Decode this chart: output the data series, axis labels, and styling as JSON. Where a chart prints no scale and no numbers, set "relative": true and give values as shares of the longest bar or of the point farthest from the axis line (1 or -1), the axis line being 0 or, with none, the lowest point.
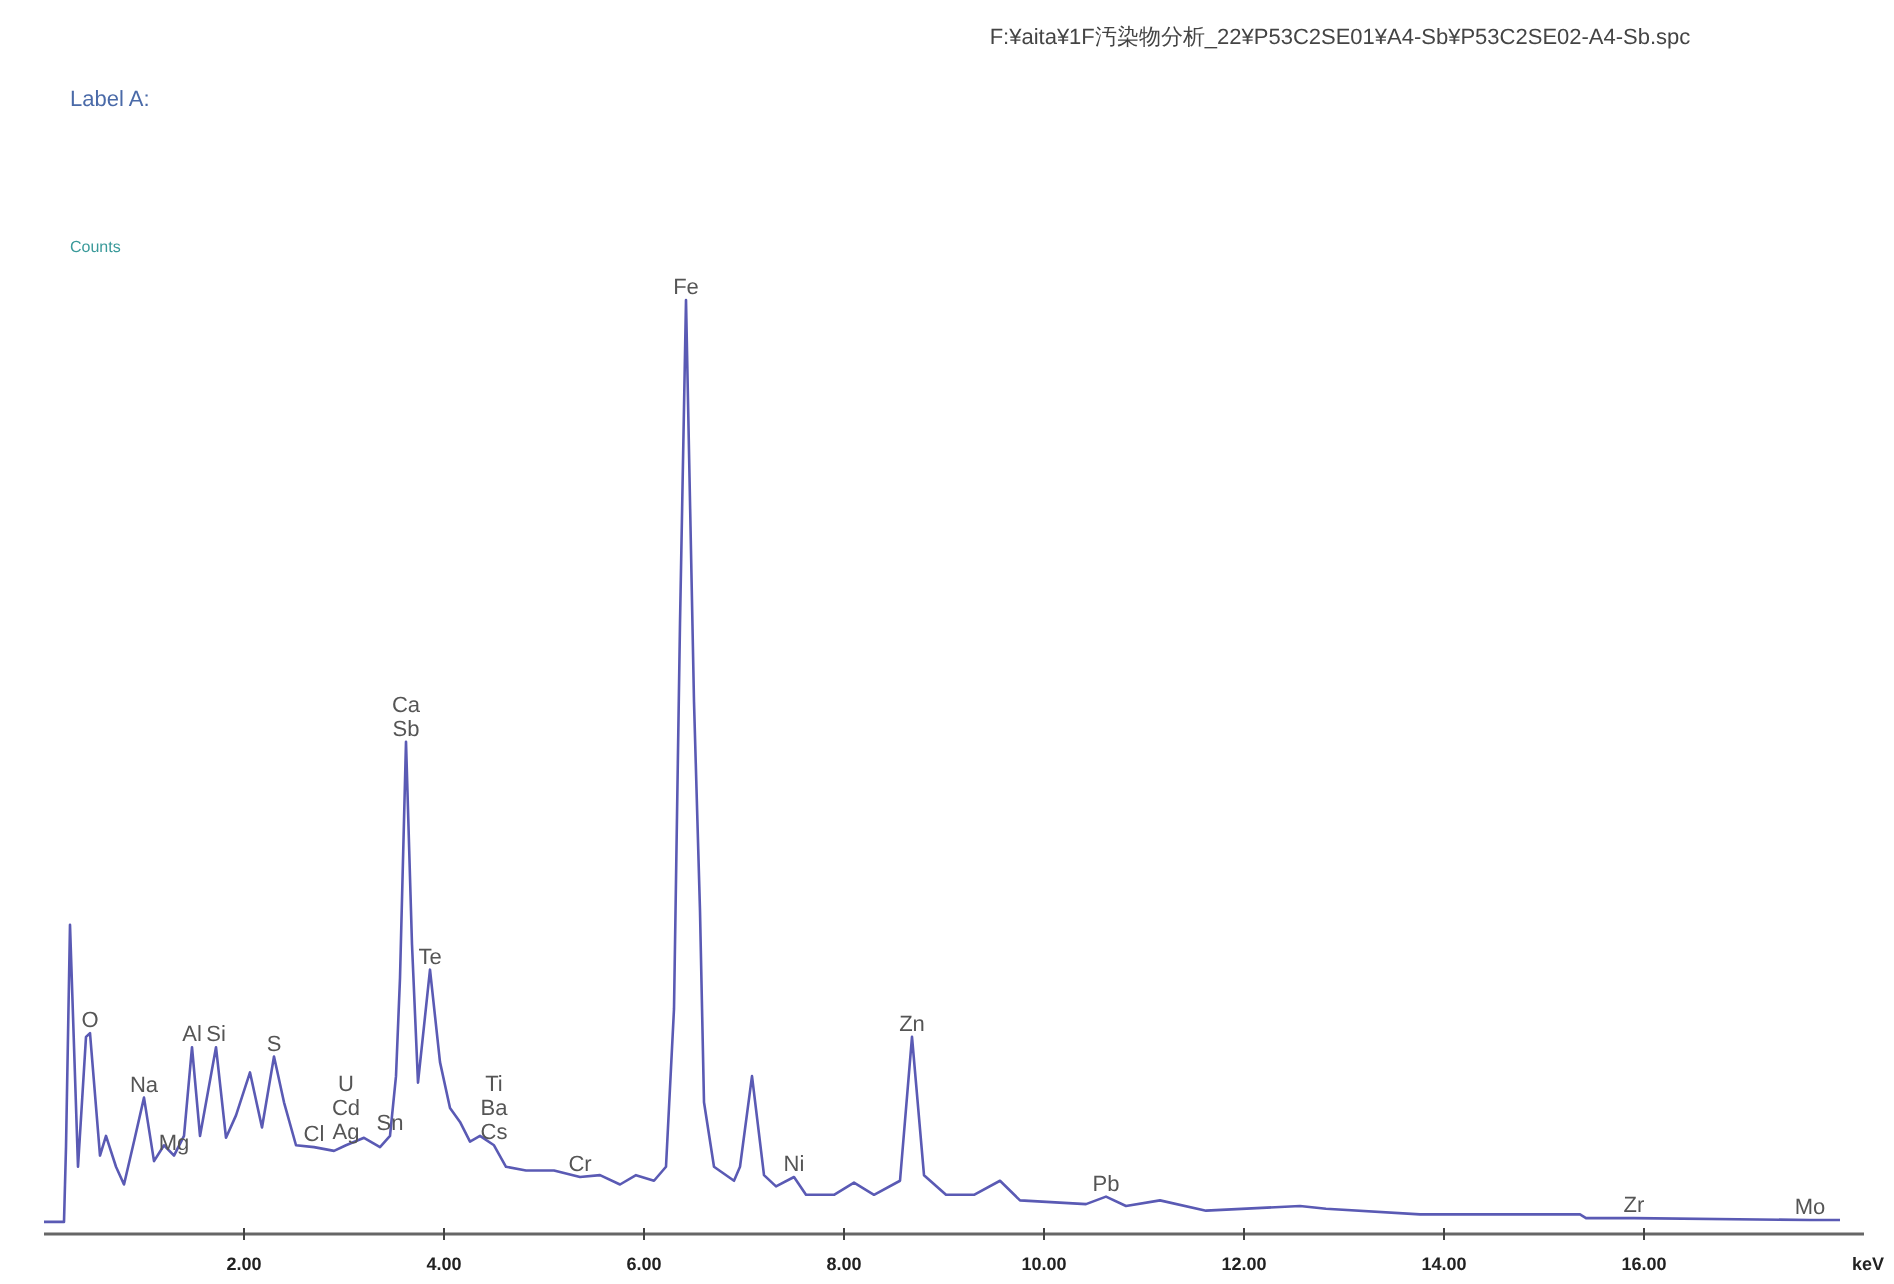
{
  "chart_data": {
    "type": "line",
    "title": "F:¥aita¥1F汚染物分析_22¥P53C2SE01¥A4-Sb¥P53C2SE02-A4-Sb.spc",
    "subtitle": "Label A:",
    "ylabel": "Counts",
    "xlabel": "keV",
    "relative": true,
    "color": "#5a5ab4",
    "xlim": [
      0,
      18.2
    ],
    "xticks": [
      {
        "value": 2,
        "label": "2.00"
      },
      {
        "value": 4,
        "label": "4.00"
      },
      {
        "value": 6,
        "label": "6.00"
      },
      {
        "value": 8,
        "label": "8.00"
      },
      {
        "value": 10,
        "label": "10.00"
      },
      {
        "value": 12,
        "label": "12.00"
      },
      {
        "value": 14,
        "label": "14.00"
      },
      {
        "value": 16,
        "label": "16.00"
      }
    ],
    "x": [
      0,
      0.2,
      0.22,
      0.26,
      0.34,
      0.42,
      0.46,
      0.56,
      0.62,
      0.72,
      0.8,
      0.9,
      1.0,
      1.1,
      1.2,
      1.3,
      1.4,
      1.48,
      1.56,
      1.72,
      1.82,
      1.92,
      2.06,
      2.18,
      2.3,
      2.4,
      2.52,
      2.7,
      2.9,
      3.02,
      3.2,
      3.36,
      3.46,
      3.52,
      3.56,
      3.62,
      3.68,
      3.74,
      3.86,
      3.96,
      4.06,
      4.16,
      4.26,
      4.36,
      4.5,
      4.62,
      4.82,
      5.1,
      5.36,
      5.56,
      5.76,
      5.92,
      6.1,
      6.22,
      6.3,
      6.36,
      6.42,
      6.5,
      6.56,
      6.6,
      6.7,
      6.9,
      6.96,
      7.08,
      7.2,
      7.32,
      7.5,
      7.62,
      7.9,
      8.1,
      8.3,
      8.56,
      8.68,
      8.8,
      9.02,
      9.3,
      9.56,
      9.76,
      10.42,
      10.62,
      10.82,
      11.16,
      11.62,
      12.56,
      12.82,
      13.76,
      15.36,
      15.42,
      15.9,
      17.66,
      17.96
    ],
    "values": [
      0.013,
      0.013,
      0.093,
      0.331,
      0.072,
      0.211,
      0.215,
      0.084,
      0.105,
      0.072,
      0.053,
      0.099,
      0.146,
      0.078,
      0.095,
      0.084,
      0.105,
      0.2,
      0.105,
      0.2,
      0.103,
      0.127,
      0.173,
      0.114,
      0.19,
      0.141,
      0.095,
      0.093,
      0.089,
      0.095,
      0.103,
      0.093,
      0.105,
      0.169,
      0.274,
      0.527,
      0.31,
      0.162,
      0.283,
      0.184,
      0.135,
      0.12,
      0.099,
      0.105,
      0.095,
      0.072,
      0.068,
      0.068,
      0.061,
      0.063,
      0.053,
      0.063,
      0.057,
      0.072,
      0.241,
      0.654,
      1,
      0.57,
      0.346,
      0.141,
      0.072,
      0.057,
      0.072,
      0.169,
      0.063,
      0.051,
      0.061,
      0.042,
      0.042,
      0.055,
      0.042,
      0.057,
      0.211,
      0.063,
      0.042,
      0.042,
      0.057,
      0.036,
      0.032,
      0.04,
      0.03,
      0.036,
      0.025,
      0.03,
      0.027,
      0.021,
      0.021,
      0.017,
      0.017,
      0.015,
      0.015
    ],
    "annotations": [
      {
        "text": "O",
        "x": 0.46,
        "y": 0.215
      },
      {
        "text": "Na",
        "x": 1.0,
        "y": 0.146
      },
      {
        "text": "Mg",
        "x": 1.3,
        "y": 0.084
      },
      {
        "text": "Al",
        "x": 1.48,
        "y": 0.2
      },
      {
        "text": "Si",
        "x": 1.72,
        "y": 0.2
      },
      {
        "text": "S",
        "x": 2.3,
        "y": 0.19
      },
      {
        "text": "Cl",
        "x": 2.7,
        "y": 0.093
      },
      {
        "text": "Ag",
        "x": 3.02,
        "y": 0.095
      },
      {
        "text": "Cd",
        "x": 3.02,
        "y": 0.095
      },
      {
        "text": "U",
        "x": 3.02,
        "y": 0.095
      },
      {
        "text": "Sn",
        "x": 3.46,
        "y": 0.105
      },
      {
        "text": "Sb",
        "x": 3.62,
        "y": 0.527
      },
      {
        "text": "Ca",
        "x": 3.62,
        "y": 0.527
      },
      {
        "text": "Te",
        "x": 3.86,
        "y": 0.283
      },
      {
        "text": "Cs",
        "x": 4.5,
        "y": 0.095
      },
      {
        "text": "Ba",
        "x": 4.5,
        "y": 0.095
      },
      {
        "text": "Ti",
        "x": 4.5,
        "y": 0.095
      },
      {
        "text": "Cr",
        "x": 5.36,
        "y": 0.061
      },
      {
        "text": "Fe",
        "x": 6.42,
        "y": 1
      },
      {
        "text": "Ni",
        "x": 7.5,
        "y": 0.061
      },
      {
        "text": "Zn",
        "x": 8.68,
        "y": 0.211
      },
      {
        "text": "Pb",
        "x": 10.62,
        "y": 0.04
      },
      {
        "text": "Zr",
        "x": 15.9,
        "y": 0.017
      },
      {
        "text": "Mo",
        "x": 17.66,
        "y": 0.015
      }
    ]
  }
}
